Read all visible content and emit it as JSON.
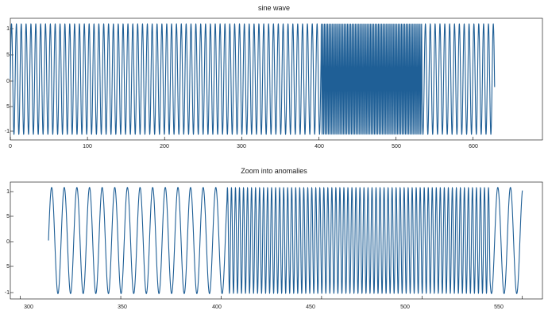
{
  "chart_data": [
    {
      "type": "line",
      "title": "sine wave",
      "xlim": [
        0,
        690
      ],
      "ylim": [
        -1.1,
        1.1
      ],
      "xticks": [
        "0",
        "100",
        "200",
        "300",
        "400",
        "500",
        "600"
      ],
      "yticks": [
        "1",
        "5",
        "0",
        "5",
        "-1"
      ],
      "series": [
        {
          "x_range": [
            0,
            628
          ],
          "segments": [
            {
              "x": [
                0,
                403
              ],
              "cycles_per_unit": 0.159
            },
            {
              "x": [
                403,
                534
              ],
              "cycles_per_unit": 0.5
            },
            {
              "x": [
                534,
                628
              ],
              "cycles_per_unit": 0.159
            }
          ],
          "amplitude": 1,
          "color": "#1f5f96"
        }
      ],
      "grid": false
    },
    {
      "type": "line",
      "title": "Zoom into anomalies",
      "xlim": [
        295,
        560
      ],
      "ylim": [
        -1.1,
        1.1
      ],
      "xticks": [
        "300",
        "350",
        "400",
        "450",
        "500",
        "550"
      ],
      "yticks": [
        "1",
        "5",
        "0",
        "5",
        "-1"
      ],
      "series": [
        {
          "x_range": [
            314,
            550
          ],
          "segments": [
            {
              "x": [
                314,
                403
              ],
              "cycles_per_unit": 0.159
            },
            {
              "x": [
                403,
                534
              ],
              "cycles_per_unit": 0.5
            },
            {
              "x": [
                534,
                550
              ],
              "cycles_per_unit": 0.159
            }
          ],
          "amplitude": 1,
          "color": "#1f5f96"
        }
      ],
      "grid": false
    }
  ]
}
